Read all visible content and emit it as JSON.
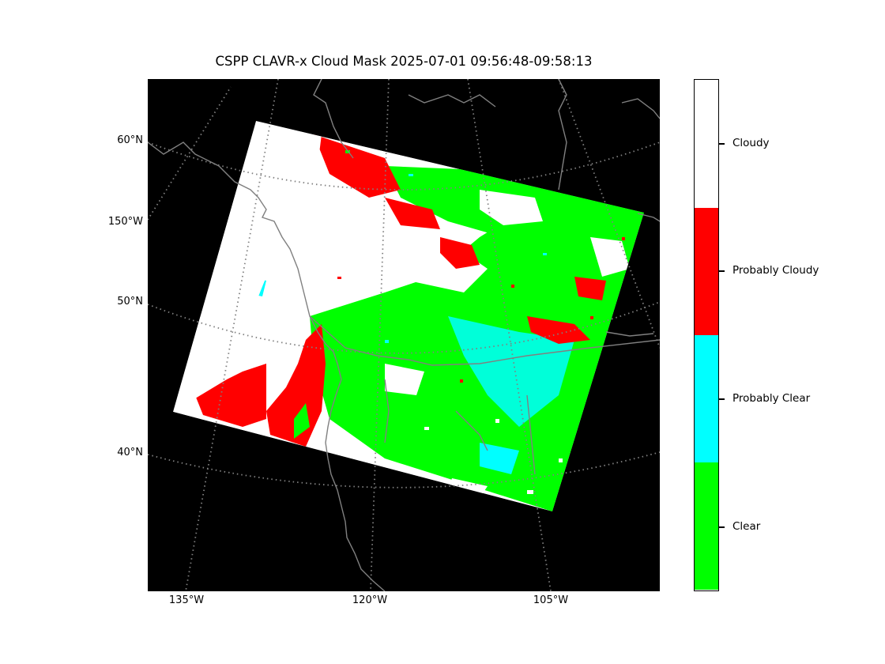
{
  "figure": {
    "title": "CSPP CLAVR-x Cloud Mask 2025-07-01 09:56:48-09:58:13"
  },
  "map": {
    "background_color": "#000000",
    "coastline_color": "#808080",
    "gridline_color": "#808080",
    "gridline_style": "dotted",
    "latitude_labels": [
      "60°N",
      "150°W",
      "50°N",
      "40°N"
    ],
    "longitude_labels": [
      "135°W",
      "120°W",
      "105°W"
    ]
  },
  "legend": {
    "type": "colorbar",
    "placement": "right",
    "classes": [
      {
        "label": "Cloudy",
        "color": "#ffffff"
      },
      {
        "label": "Probably Cloudy",
        "color": "#ff0000"
      },
      {
        "label": "Probably Clear",
        "color": "#00ffff"
      },
      {
        "label": "Clear",
        "color": "#00ff00"
      }
    ]
  }
}
